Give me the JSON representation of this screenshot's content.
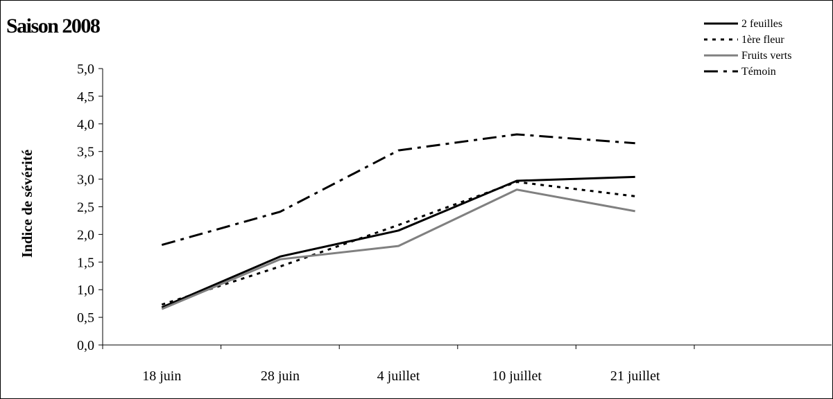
{
  "chart_data": {
    "type": "line",
    "title": "Saison 2008",
    "ylabel": "Indice de sévérité",
    "xlabel": "",
    "categories": [
      "18 juin",
      "28 juin",
      "4 juillet",
      "10 juillet",
      "21 juillet"
    ],
    "ylim": [
      0,
      5
    ],
    "yticks": [
      "0,0",
      "0,5",
      "1,0",
      "1,5",
      "2,0",
      "2,5",
      "3,0",
      "3,5",
      "4,0",
      "4,5",
      "5,0"
    ],
    "grid": false,
    "legend_position": "top-right",
    "series": [
      {
        "name": "2 feuilles",
        "values": [
          0.68,
          1.6,
          2.07,
          2.97,
          3.04
        ],
        "color": "#000000",
        "dash": "solid"
      },
      {
        "name": "1ère fleur",
        "values": [
          0.73,
          1.42,
          2.17,
          2.95,
          2.69
        ],
        "color": "#000000",
        "dash": "dotted"
      },
      {
        "name": "Fruits verts",
        "values": [
          0.65,
          1.55,
          1.79,
          2.81,
          2.42
        ],
        "color": "#808080",
        "dash": "solid"
      },
      {
        "name": "Témoin",
        "values": [
          1.81,
          2.41,
          3.52,
          3.81,
          3.65
        ],
        "color": "#000000",
        "dash": "dashdot"
      }
    ]
  }
}
